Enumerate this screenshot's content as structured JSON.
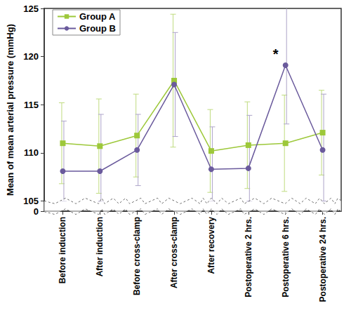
{
  "chart_data": {
    "type": "line",
    "y_label": "Mean of mean arterial pressure (mmHg)",
    "categories": [
      "Before induction",
      "After induction",
      "Before cross-clamp",
      "After cross-clamp",
      "After recovery",
      "Postoperative 2 hrs.",
      "Postoperative 6 hrs.",
      "Postoperative 24 hrs."
    ],
    "series": [
      {
        "name": "Group A",
        "color": "#9dc83a",
        "marker": "square",
        "values": [
          111.0,
          110.7,
          111.8,
          117.5,
          110.2,
          110.8,
          111.0,
          112.1
        ],
        "errors": [
          4.2,
          4.9,
          4.3,
          6.9,
          4.3,
          4.5,
          5.0,
          4.4
        ]
      },
      {
        "name": "Group B",
        "color": "#6a5a9c",
        "marker": "circle",
        "values": [
          108.1,
          108.1,
          110.3,
          117.1,
          108.3,
          108.4,
          119.1,
          110.3
        ],
        "errors": [
          5.2,
          5.9,
          3.7,
          5.4,
          4.4,
          5.5,
          6.1,
          5.8
        ]
      }
    ],
    "annotations": [
      {
        "text": "*",
        "series": "Group B",
        "category": "Postoperative 6 hrs."
      }
    ],
    "ylim": [
      0,
      125
    ],
    "yticks": [
      0,
      105,
      110,
      115,
      120,
      125
    ],
    "y_break": [
      0,
      105
    ],
    "legend": "upper left",
    "grid": false
  }
}
